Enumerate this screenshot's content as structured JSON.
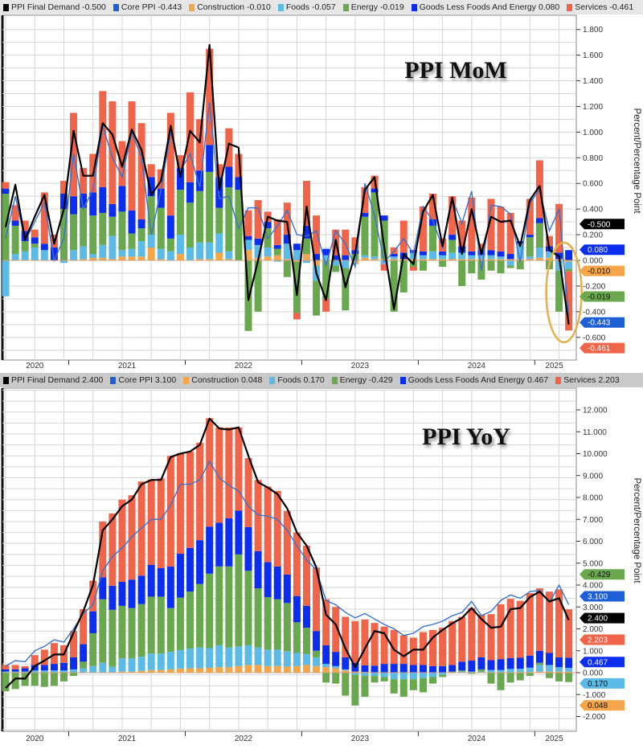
{
  "colors": {
    "final_demand": "#000000",
    "core_ppi": "#1f5fd6",
    "core_line": "#3b72c9",
    "construction": "#f5a54a",
    "foods": "#5bbbe6",
    "energy": "#6aa84f",
    "goods_less_food_energy": "#0b2df0",
    "services": "#f0644a",
    "highlight": "#e3b04b"
  },
  "chart_data": [
    {
      "type": "bar",
      "stacked": true,
      "title": "PPI MoM",
      "ylabel": "Percent/Percentage Point",
      "ylim": [
        -0.7,
        1.85
      ],
      "yticks": [
        -0.6,
        -0.4,
        -0.2,
        0,
        0.2,
        0.4,
        0.6,
        0.8,
        1.0,
        1.2,
        1.4,
        1.6,
        1.8
      ],
      "x_start": "2020-06",
      "x_end": "2025-04",
      "year_labels": [
        "2020",
        "2021",
        "2022",
        "2023",
        "2024",
        "2025"
      ],
      "grid": true,
      "legend_placement": "top",
      "highlight": "ellipse around last two bars",
      "legend": [
        {
          "name": "PPI Final Demand",
          "value": "-0.500",
          "key": "final_demand"
        },
        {
          "name": "Core PPI",
          "value": "-0.443",
          "key": "core_ppi"
        },
        {
          "name": "Construction",
          "value": "-0.010",
          "key": "construction"
        },
        {
          "name": "Foods",
          "value": "-0.057",
          "key": "foods"
        },
        {
          "name": "Energy",
          "value": "-0.019",
          "key": "energy"
        },
        {
          "name": "Goods Less Foods And Energy",
          "value": "0.080",
          "key": "goods_less_food_energy"
        },
        {
          "name": "Services",
          "value": "-0.461",
          "key": "services"
        }
      ],
      "badges": [
        {
          "value": "-0.461",
          "key": "services"
        },
        {
          "value": "0.080",
          "key": "goods_less_food_energy"
        },
        {
          "value": "-0.010",
          "key": "construction"
        },
        {
          "value": "-0.019",
          "key": "energy"
        },
        {
          "value": "-0.443",
          "key": "core_ppi"
        },
        {
          "value": "-0.500",
          "key": "final_demand"
        }
      ],
      "lines": {
        "final_demand": [
          0.26,
          0.59,
          0.16,
          0.34,
          0.51,
          0.13,
          0.4,
          1.01,
          0.66,
          0.66,
          1.07,
          0.98,
          0.73,
          1.02,
          0.86,
          0.51,
          0.62,
          1.05,
          0.65,
          1.01,
          0.92,
          1.68,
          0.55,
          0.91,
          0.88,
          -0.31,
          0.0,
          0.34,
          0.31,
          0.3,
          -0.27,
          0.42,
          -0.1,
          -0.31,
          0.16,
          -0.21,
          0.05,
          0.55,
          0.65,
          0.1,
          -0.38,
          0.05,
          -0.03,
          0.38,
          0.51,
          0.11,
          0.49,
          0.05,
          0.4,
          0.05,
          0.34,
          0.3,
          0.31,
          0.11,
          0.47,
          0.58,
          0.08,
          0.03,
          -0.5
        ],
        "core_ppi": [
          0.17,
          0.5,
          0.15,
          0.3,
          0.45,
          0.0,
          0.17,
          0.83,
          0.4,
          0.55,
          1.05,
          0.8,
          0.65,
          1.0,
          0.8,
          0.2,
          0.55,
          1.0,
          0.7,
          0.83,
          0.57,
          1.23,
          0.48,
          0.5,
          0.25,
          0.41,
          0.41,
          0.17,
          0.27,
          0.39,
          0.2,
          0.19,
          0.23,
          -0.04,
          0.23,
          0.13,
          -0.05,
          0.6,
          0.35,
          -0.01,
          0.07,
          0.17,
          0.05,
          0.42,
          0.31,
          0.1,
          0.48,
          0.29,
          0.54,
          -0.08,
          0.43,
          0.42,
          0.36,
          -0.01,
          0.45,
          0.55,
          0.23,
          0.4,
          -0.443
        ]
      },
      "series": {
        "construction": [
          0,
          0,
          0,
          0,
          0,
          0,
          0,
          0,
          0.01,
          0.02,
          0.02,
          0.01,
          0.03,
          0.03,
          0.03,
          0.1,
          0.01,
          0.0,
          0.05,
          0.0,
          0.01,
          0.01,
          0.06,
          0.01,
          0,
          0.08,
          0.02,
          0.03,
          0.04,
          0.01,
          -0.01,
          0.05,
          -0.04,
          0,
          0,
          0,
          -0.03,
          0.02,
          0.01,
          0.01,
          0.01,
          0.01,
          0.01,
          0.01,
          0.01,
          0.01,
          0.01,
          0.01,
          0.01,
          0.01,
          0.01,
          0.01,
          0.01,
          0.01,
          0.01,
          0.02,
          0.02,
          0.01,
          -0.01
        ],
        "foods": [
          -0.28,
          0.05,
          0.07,
          0.1,
          0.08,
          0.0,
          -0.02,
          0.08,
          0.1,
          0.03,
          0.1,
          0.18,
          0.05,
          0.06,
          0.12,
          0.1,
          0.08,
          0.07,
          0.15,
          0.1,
          0.13,
          0.13,
          0.15,
          0.06,
          0.0,
          0.08,
          0.1,
          0.07,
          -0.01,
          0.12,
          0.08,
          -0.02,
          -0.12,
          0.04,
          -0.04,
          -0.06,
          0.0,
          0.02,
          0.02,
          -0.03,
          0.02,
          0.0,
          0.05,
          0.03,
          0.06,
          0.03,
          0.05,
          0.05,
          0.03,
          0.03,
          0.03,
          0.02,
          -0.04,
          0.12,
          0.02,
          0.08,
          0.05,
          -0.08,
          -0.057
        ],
        "energy": [
          0.52,
          0.22,
          0.08,
          0.03,
          0,
          0,
          0.4,
          0.28,
          0.3,
          0.3,
          0.25,
          0.15,
          0.3,
          0.12,
          0.1,
          0.3,
          0.32,
          0.1,
          0.35,
          0.35,
          0.4,
          0.55,
          0.2,
          0.5,
          0.55,
          -0.55,
          -0.4,
          0.15,
          0.05,
          -0.13,
          -0.4,
          0.12,
          -0.27,
          -0.3,
          -0.05,
          -0.33,
          0.05,
          0.3,
          0.5,
          0.3,
          -0.4,
          -0.25,
          -0.05,
          -0.08,
          0.2,
          -0.05,
          0.1,
          -0.2,
          -0.1,
          -0.15,
          -0.08,
          -0.1,
          -0.02,
          -0.07,
          0.15,
          0.19,
          -0.07,
          -0.32,
          -0.019
        ],
        "goods_less_food_energy": [
          0.04,
          0.04,
          0.08,
          0.05,
          0.05,
          0.1,
          0.12,
          0.14,
          0.11,
          0.18,
          0.2,
          0.1,
          0.2,
          0.18,
          0.07,
          0.15,
          0.15,
          0.18,
          0.17,
          0.16,
          0.16,
          0.21,
          0.24,
          0.16,
          0.1,
          0.03,
          0.05,
          0.05,
          0.03,
          0.07,
          0.05,
          0.1,
          0.05,
          0.05,
          0.04,
          0.04,
          0.03,
          0.03,
          0.03,
          0.04,
          0.02,
          0.05,
          0.02,
          0.03,
          0.05,
          0.03,
          0.04,
          0.05,
          0.03,
          0.04,
          0.04,
          0.04,
          0.04,
          0.02,
          0.02,
          0.04,
          0.04,
          0.05,
          0.08
        ],
        "services": [
          0.05,
          0.12,
          0.08,
          0.06,
          0.4,
          0.1,
          0.1,
          0.65,
          0.2,
          0.3,
          0.75,
          0.8,
          0.35,
          0.85,
          0.75,
          0.1,
          0.15,
          0.8,
          0.1,
          0.7,
          0.4,
          0.75,
          0.1,
          0.3,
          0.18,
          0.2,
          0.3,
          0.08,
          0.2,
          0.25,
          -0.05,
          0.35,
          0.3,
          -0.1,
          0.2,
          0.2,
          0.1,
          0.2,
          0.1,
          -0.05,
          0.05,
          0.25,
          -0.03,
          0.35,
          0.2,
          0.1,
          0.3,
          0.2,
          0.42,
          0.05,
          0.4,
          0.35,
          0.32,
          0.0,
          0.28,
          0.45,
          0.08,
          0.38,
          -0.461
        ]
      }
    },
    {
      "type": "bar",
      "stacked": true,
      "title": "PPI YoY",
      "ylabel": "Percent/Percentage Point",
      "ylim": [
        -2.6,
        13.0
      ],
      "yticks": [
        -2,
        -1,
        0,
        1,
        2,
        3,
        4,
        5,
        6,
        7,
        8,
        9,
        10,
        11,
        12
      ],
      "x_start": "2020-06",
      "x_end": "2025-04",
      "year_labels": [
        "2020",
        "2021",
        "2022",
        "2023",
        "2024",
        "2025"
      ],
      "grid": true,
      "legend_placement": "top",
      "legend": [
        {
          "name": "PPI Final Demand",
          "value": "2.400",
          "key": "final_demand"
        },
        {
          "name": "Core PPI",
          "value": "3.100",
          "key": "core_ppi"
        },
        {
          "name": "Construction",
          "value": "0.048",
          "key": "construction"
        },
        {
          "name": "Foods",
          "value": "0.170",
          "key": "foods"
        },
        {
          "name": "Energy",
          "value": "-0.429",
          "key": "energy"
        },
        {
          "name": "Goods Less Foods And Energy",
          "value": "0.467",
          "key": "goods_less_food_energy"
        },
        {
          "name": "Services",
          "value": "2.203",
          "key": "services"
        }
      ],
      "badges": [
        {
          "value": "2.203",
          "key": "services"
        },
        {
          "value": "3.100",
          "key": "core_ppi"
        },
        {
          "value": "2.400",
          "key": "final_demand"
        },
        {
          "value": "0.467",
          "key": "goods_less_food_energy"
        },
        {
          "value": "0.170",
          "key": "foods"
        },
        {
          "value": "0.048",
          "key": "construction"
        },
        {
          "value": "-0.429",
          "key": "energy"
        }
      ],
      "lines": {
        "final_demand": [
          -0.7,
          -0.27,
          -0.27,
          0.3,
          0.55,
          0.83,
          0.83,
          1.83,
          2.8,
          4.0,
          6.5,
          7.0,
          7.6,
          7.9,
          8.6,
          8.8,
          8.8,
          9.85,
          10.0,
          10.1,
          10.4,
          11.6,
          11.15,
          11.1,
          11.2,
          9.9,
          8.7,
          8.45,
          8.15,
          7.5,
          6.4,
          5.8,
          4.8,
          2.65,
          2.2,
          1.1,
          0.25,
          1.1,
          1.9,
          1.8,
          1.05,
          0.75,
          1.05,
          1.05,
          1.6,
          1.95,
          2.25,
          2.5,
          2.95,
          2.45,
          2.05,
          2.1,
          2.9,
          2.95,
          3.45,
          3.7,
          3.25,
          3.4,
          2.4
        ],
        "core_ppi": [
          0.3,
          0.55,
          0.5,
          1.0,
          1.2,
          1.5,
          1.4,
          2.0,
          2.7,
          3.1,
          4.65,
          5.3,
          5.7,
          6.2,
          6.6,
          7.0,
          7.0,
          7.65,
          8.6,
          8.6,
          8.8,
          9.65,
          8.9,
          8.55,
          8.3,
          7.6,
          7.2,
          7.15,
          7.0,
          6.5,
          5.8,
          5.15,
          4.7,
          3.3,
          3.1,
          2.75,
          2.5,
          2.7,
          2.45,
          2.2,
          2.0,
          1.7,
          1.8,
          2.1,
          2.2,
          2.35,
          2.6,
          2.75,
          3.25,
          2.6,
          2.8,
          3.3,
          3.55,
          3.4,
          3.7,
          3.75,
          3.2,
          4.0,
          3.1
        ]
      },
      "series": {
        "construction": [
          0,
          0,
          0,
          0,
          0,
          0,
          0,
          0,
          0,
          0,
          0,
          0.02,
          0.05,
          0.05,
          0.08,
          0.12,
          0.12,
          0.15,
          0.18,
          0.2,
          0.2,
          0.22,
          0.25,
          0.25,
          0.3,
          0.35,
          0.35,
          0.3,
          0.3,
          0.28,
          0.3,
          0.35,
          0.3,
          0.25,
          0.2,
          0.1,
          0.05,
          0.03,
          0.02,
          0.0,
          0,
          0,
          0,
          0,
          0,
          0,
          0,
          0,
          0,
          0,
          0.02,
          0.02,
          0.02,
          0.03,
          0.03,
          0.05,
          0.05,
          0.05,
          0.048
        ],
        "foods": [
          0.05,
          0.05,
          0.05,
          0.1,
          0.1,
          0.1,
          0.1,
          0.15,
          0.2,
          0.3,
          0.45,
          0.25,
          0.6,
          0.6,
          0.65,
          0.75,
          0.75,
          0.8,
          0.85,
          0.9,
          0.95,
          0.9,
          1.0,
          0.9,
          0.9,
          0.9,
          0.8,
          0.75,
          0.75,
          0.7,
          0.6,
          0.5,
          0.4,
          0.15,
          0.1,
          0.05,
          -0.1,
          -0.15,
          -0.15,
          -0.2,
          -0.3,
          -0.3,
          -0.3,
          -0.25,
          -0.2,
          -0.1,
          0.0,
          0.05,
          0.05,
          0.05,
          0.1,
          0.1,
          0.15,
          0.15,
          0.2,
          0.3,
          0.3,
          0.2,
          0.17
        ],
        "energy": [
          -0.85,
          -0.75,
          -0.6,
          -0.6,
          -0.65,
          -0.6,
          -0.4,
          -0.15,
          0.3,
          1.5,
          2.9,
          2.6,
          2.4,
          2.3,
          2.4,
          2.6,
          2.6,
          2.0,
          2.4,
          2.6,
          2.9,
          3.4,
          3.6,
          3.7,
          4.2,
          3.4,
          2.7,
          2.4,
          2.3,
          2.2,
          1.4,
          1.2,
          0.3,
          -0.45,
          -0.5,
          -1.05,
          -1.4,
          -0.95,
          -0.3,
          -0.2,
          -0.65,
          -0.8,
          -0.5,
          -0.65,
          -0.3,
          -0.1,
          0.05,
          0.05,
          -0.05,
          0.1,
          -0.5,
          -0.8,
          -0.45,
          -0.35,
          -0.15,
          0.1,
          -0.25,
          -0.4,
          -0.429
        ],
        "goods_less_food_energy": [
          0.1,
          0.1,
          0.15,
          0.25,
          0.25,
          0.3,
          0.35,
          0.55,
          0.8,
          1.0,
          1.0,
          1.1,
          1.1,
          1.3,
          1.3,
          1.45,
          1.3,
          1.9,
          2.0,
          2.0,
          2.0,
          2.15,
          2.0,
          2.2,
          2.0,
          2.0,
          1.7,
          1.6,
          1.5,
          1.3,
          1.2,
          1.0,
          0.9,
          0.85,
          0.65,
          0.55,
          0.4,
          0.3,
          0.3,
          0.4,
          0.4,
          0.4,
          0.35,
          0.35,
          0.3,
          0.3,
          0.3,
          0.4,
          0.5,
          0.55,
          0.45,
          0.5,
          0.5,
          0.5,
          0.55,
          0.55,
          0.55,
          0.45,
          0.467
        ],
        "services": [
          0.2,
          0.2,
          0.1,
          0.45,
          0.7,
          0.95,
          0.8,
          1.2,
          1.6,
          1.4,
          2.55,
          3.3,
          3.75,
          3.85,
          4.3,
          3.9,
          4.1,
          5.05,
          4.6,
          4.4,
          4.45,
          4.95,
          4.35,
          4.15,
          3.8,
          3.15,
          3.25,
          3.45,
          3.45,
          2.9,
          2.9,
          2.75,
          2.9,
          2.1,
          2.05,
          1.85,
          1.9,
          2.1,
          1.95,
          1.7,
          1.55,
          1.3,
          1.25,
          1.5,
          1.65,
          1.75,
          2.0,
          2.05,
          2.4,
          1.95,
          2.1,
          2.5,
          2.7,
          2.6,
          2.85,
          2.85,
          2.8,
          3.1,
          2.203
        ]
      }
    }
  ]
}
